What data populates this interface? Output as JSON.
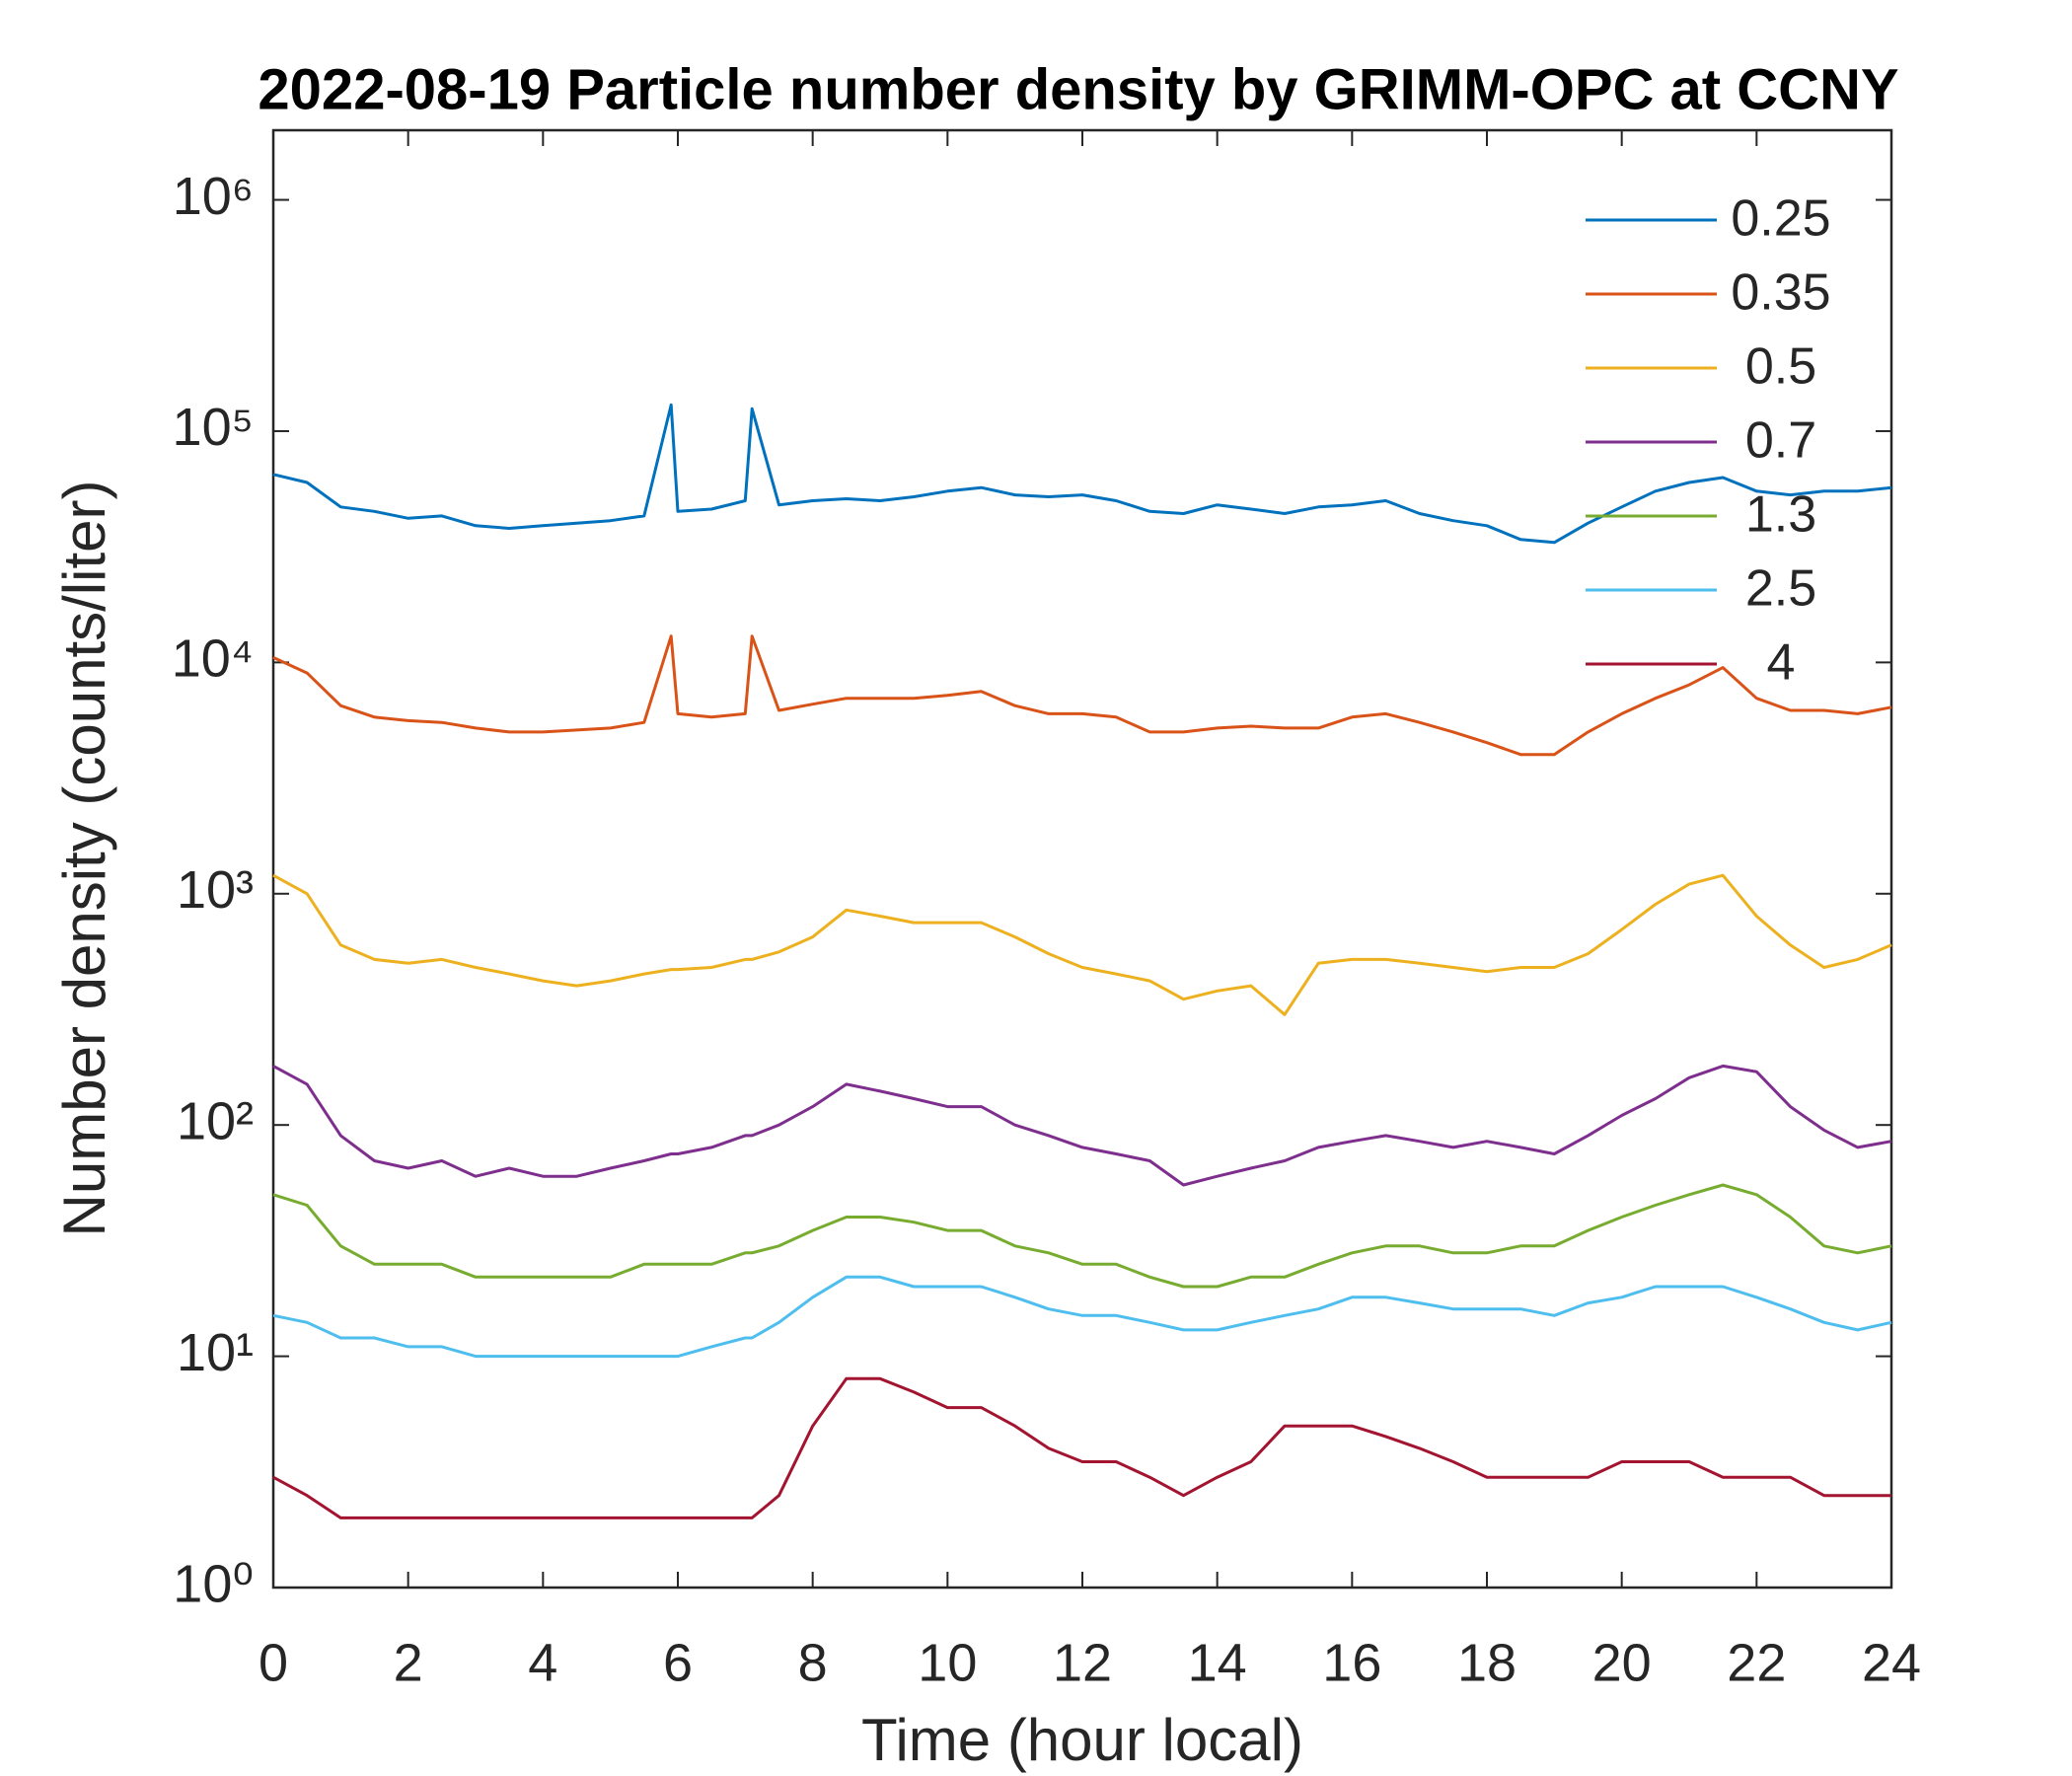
{
  "chart_data": {
    "type": "line",
    "title": "2022-08-19 Particle number density by GRIMM-OPC at CCNY",
    "x_label": "Time (hour local)",
    "y_label": "Number density (counts/liter)",
    "yscale": "log",
    "legend": "upper right",
    "xlim": [
      0,
      24
    ],
    "xticks": [
      0,
      2,
      4,
      6,
      8,
      10,
      12,
      14,
      16,
      18,
      20,
      22,
      24
    ],
    "ylim": [
      1,
      2000000
    ],
    "yticks": [
      {
        "value": 1,
        "label": "10⁰"
      },
      {
        "value": 10,
        "label": "10¹"
      },
      {
        "value": 100,
        "label": "10²"
      },
      {
        "value": 1000,
        "label": "10³"
      },
      {
        "value": 10000,
        "label": "10⁴"
      },
      {
        "value": 100000,
        "label": "10⁵"
      },
      {
        "value": 1000000,
        "label": "10⁶"
      }
    ],
    "x": [
      0,
      0.5,
      1,
      1.5,
      2,
      2.5,
      3,
      3.5,
      4,
      4.5,
      5,
      5.5,
      5.9,
      6,
      6.5,
      7,
      7.1,
      7.5,
      8,
      8.5,
      9,
      9.5,
      10,
      10.5,
      11,
      11.5,
      12,
      12.5,
      13,
      13.5,
      14,
      14.5,
      15,
      15.5,
      16,
      16.5,
      17,
      17.5,
      18,
      18.5,
      19,
      19.5,
      20,
      20.5,
      21,
      21.5,
      22,
      22.5,
      23,
      23.5,
      24
    ],
    "series": [
      {
        "name": "0.25",
        "color": "#0072BD",
        "values": [
          65000,
          60000,
          47000,
          45000,
          42000,
          43000,
          39000,
          38000,
          39000,
          40000,
          41000,
          43000,
          130000,
          45000,
          46000,
          50000,
          125000,
          48000,
          50000,
          51000,
          50000,
          52000,
          55000,
          57000,
          53000,
          52000,
          53000,
          50000,
          45000,
          44000,
          48000,
          46000,
          44000,
          47000,
          48000,
          50000,
          44000,
          41000,
          39000,
          34000,
          33000,
          40000,
          47000,
          55000,
          60000,
          63000,
          55000,
          53000,
          55000,
          55000,
          57000
        ]
      },
      {
        "name": "0.35",
        "color": "#D95319",
        "values": [
          10500,
          9000,
          6500,
          5800,
          5600,
          5500,
          5200,
          5000,
          5000,
          5100,
          5200,
          5500,
          13000,
          6000,
          5800,
          6000,
          13000,
          6200,
          6600,
          7000,
          7000,
          7000,
          7200,
          7500,
          6500,
          6000,
          6000,
          5800,
          5000,
          5000,
          5200,
          5300,
          5200,
          5200,
          5800,
          6000,
          5500,
          5000,
          4500,
          4000,
          4000,
          5000,
          6000,
          7000,
          8000,
          9500,
          7000,
          6200,
          6200,
          6000,
          6400
        ]
      },
      {
        "name": "0.5",
        "color": "#EDB120",
        "values": [
          1200,
          1000,
          600,
          520,
          500,
          520,
          480,
          450,
          420,
          400,
          420,
          450,
          470,
          470,
          480,
          520,
          520,
          560,
          650,
          850,
          800,
          750,
          750,
          750,
          650,
          550,
          480,
          450,
          420,
          350,
          380,
          400,
          300,
          500,
          520,
          520,
          500,
          480,
          460,
          480,
          480,
          550,
          700,
          900,
          1100,
          1200,
          800,
          600,
          480,
          520,
          600
        ]
      },
      {
        "name": "0.7",
        "color": "#7E2F8E",
        "values": [
          180,
          150,
          90,
          70,
          65,
          70,
          60,
          65,
          60,
          60,
          65,
          70,
          75,
          75,
          80,
          90,
          90,
          100,
          120,
          150,
          140,
          130,
          120,
          120,
          100,
          90,
          80,
          75,
          70,
          55,
          60,
          65,
          70,
          80,
          85,
          90,
          85,
          80,
          85,
          80,
          75,
          90,
          110,
          130,
          160,
          180,
          170,
          120,
          95,
          80,
          85
        ]
      },
      {
        "name": "1.3",
        "color": "#77AC30",
        "values": [
          50,
          45,
          30,
          25,
          25,
          25,
          22,
          22,
          22,
          22,
          22,
          25,
          25,
          25,
          25,
          28,
          28,
          30,
          35,
          40,
          40,
          38,
          35,
          35,
          30,
          28,
          25,
          25,
          22,
          20,
          20,
          22,
          22,
          25,
          28,
          30,
          30,
          28,
          28,
          30,
          30,
          35,
          40,
          45,
          50,
          55,
          50,
          40,
          30,
          28,
          30
        ]
      },
      {
        "name": "2.5",
        "color": "#4DBEEE",
        "values": [
          15,
          14,
          12,
          12,
          11,
          11,
          10,
          10,
          10,
          10,
          10,
          10,
          10,
          10,
          11,
          12,
          12,
          14,
          18,
          22,
          22,
          20,
          20,
          20,
          18,
          16,
          15,
          15,
          14,
          13,
          13,
          14,
          15,
          16,
          18,
          18,
          17,
          16,
          16,
          16,
          15,
          17,
          18,
          20,
          20,
          20,
          18,
          16,
          14,
          13,
          14
        ]
      },
      {
        "name": "4",
        "color": "#A2142F",
        "values": [
          3,
          2.5,
          2,
          2,
          2,
          2,
          2,
          2,
          2,
          2,
          2,
          2,
          2,
          2,
          2,
          2,
          2,
          2.5,
          5,
          8,
          8,
          7,
          6,
          6,
          5,
          4,
          3.5,
          3.5,
          3,
          2.5,
          3,
          3.5,
          5,
          5,
          5,
          4.5,
          4,
          3.5,
          3,
          3,
          3,
          3,
          3.5,
          3.5,
          3.5,
          3,
          3,
          3,
          2.5,
          2.5,
          2.5
        ]
      }
    ]
  }
}
